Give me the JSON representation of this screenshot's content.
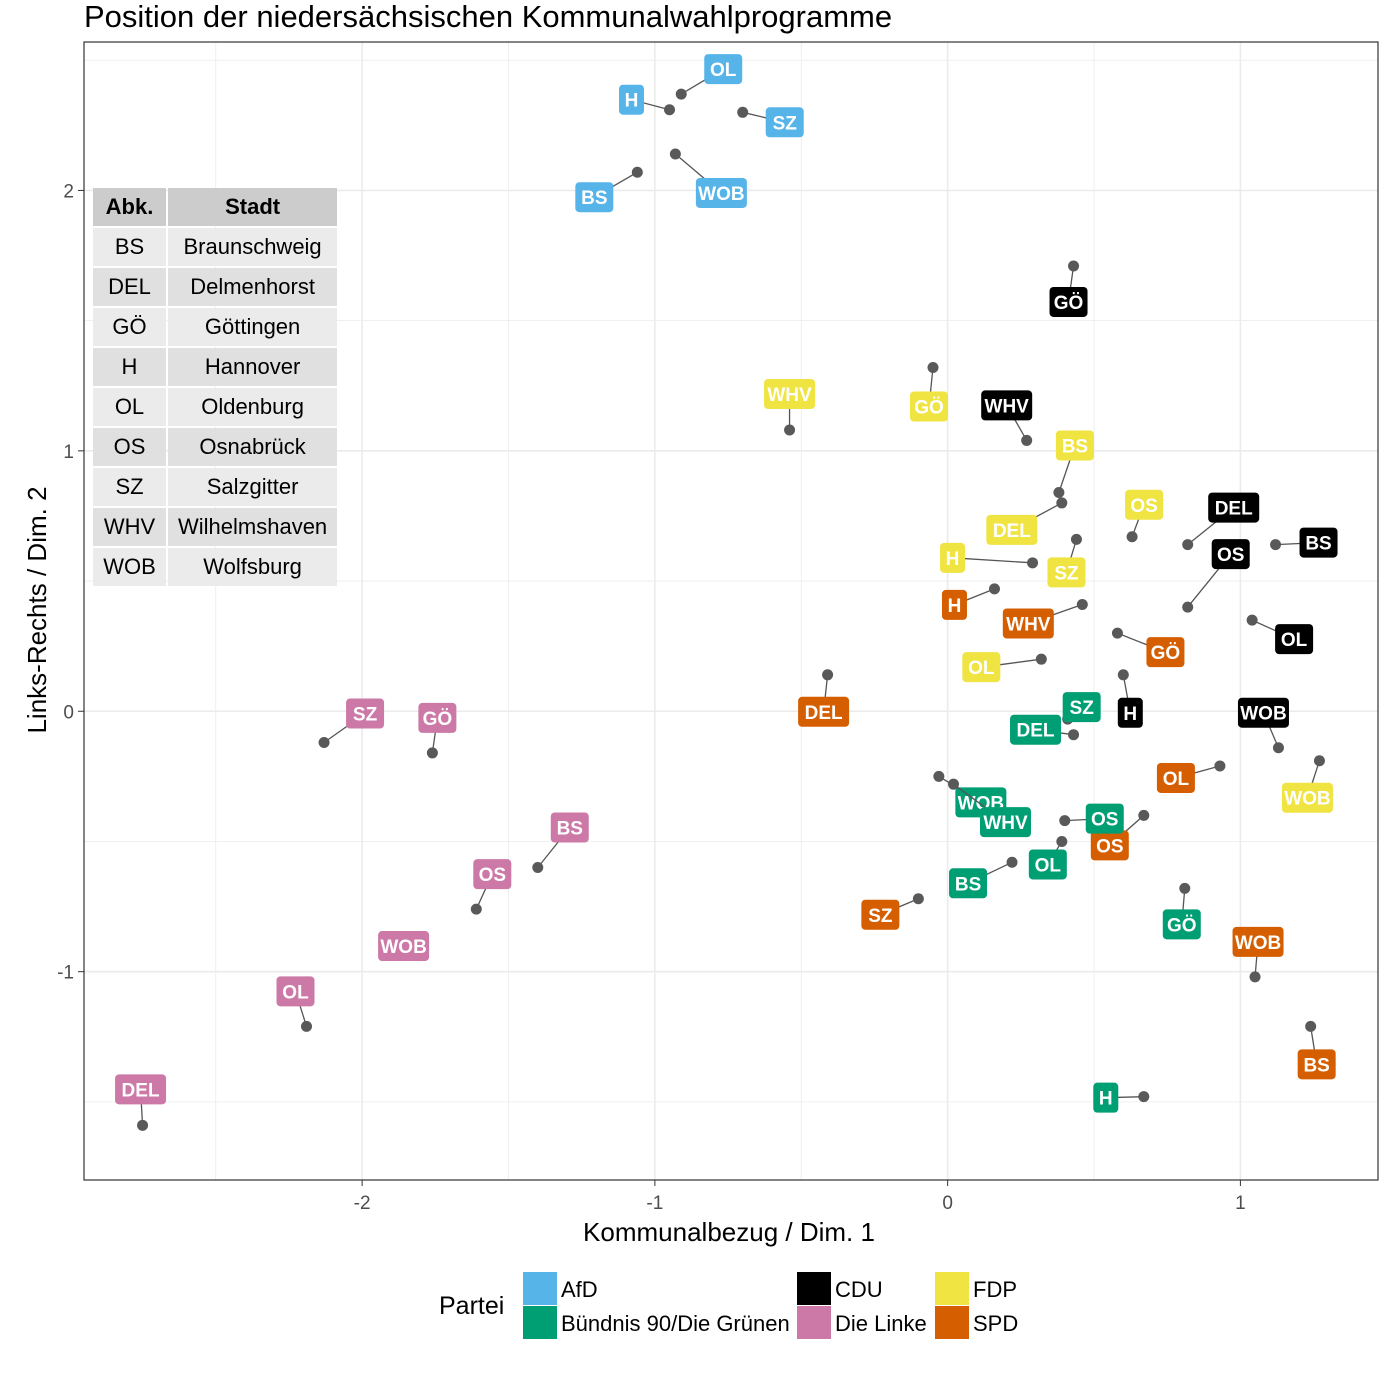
{
  "chart_data": {
    "type": "scatter",
    "title": "Position der niedersächsischen Kommunalwahlprogramme",
    "xlabel": "Kommunalbezug / Dim. 1",
    "ylabel": "Links-Rechts / Dim. 2",
    "xlim": [
      -2.95,
      1.47
    ],
    "ylim": [
      -1.8,
      2.57
    ],
    "xticks": [
      -2,
      -1,
      0,
      1
    ],
    "yticks": [
      -1,
      0,
      1,
      2
    ],
    "xtick_labels": [
      "-2",
      "-1",
      "0",
      "1"
    ],
    "ytick_labels": [
      "-1",
      "0",
      "1",
      "2"
    ],
    "grid": true,
    "legend": {
      "title": "Partei",
      "placement": "bottom",
      "entries": [
        {
          "name": "AfD",
          "color": "#56b4e9"
        },
        {
          "name": "Bündnis 90/Die Grünen",
          "color": "#009e73"
        },
        {
          "name": "CDU",
          "color": "#000000"
        },
        {
          "name": "Die Linke",
          "color": "#cc79a7"
        },
        {
          "name": "FDP",
          "color": "#f0e442"
        },
        {
          "name": "SPD",
          "color": "#d55e00"
        }
      ]
    },
    "series": [
      {
        "name": "AfD",
        "color": "#56b4e9",
        "points": [
          {
            "label": "OL",
            "x": -0.91,
            "y": 2.37
          },
          {
            "label": "H",
            "x": -0.95,
            "y": 2.31
          },
          {
            "label": "SZ",
            "x": -0.7,
            "y": 2.3
          },
          {
            "label": "WOB",
            "x": -0.93,
            "y": 2.14
          },
          {
            "label": "BS",
            "x": -1.06,
            "y": 2.07
          }
        ]
      },
      {
        "name": "CDU",
        "color": "#000000",
        "points": [
          {
            "label": "GÖ",
            "x": 0.43,
            "y": 1.71
          },
          {
            "label": "WHV",
            "x": 0.27,
            "y": 1.04
          },
          {
            "label": "DEL",
            "x": 0.82,
            "y": 0.64
          },
          {
            "label": "BS",
            "x": 1.12,
            "y": 0.64
          },
          {
            "label": "OS",
            "x": 0.82,
            "y": 0.4
          },
          {
            "label": "OL",
            "x": 1.04,
            "y": 0.35
          },
          {
            "label": "H",
            "x": 0.6,
            "y": 0.14
          },
          {
            "label": "WOB",
            "x": 1.13,
            "y": -0.14
          }
        ]
      },
      {
        "name": "FDP",
        "color": "#f0e442",
        "points": [
          {
            "label": "WHV",
            "x": -0.54,
            "y": 1.08
          },
          {
            "label": "GÖ",
            "x": -0.05,
            "y": 1.32
          },
          {
            "label": "BS",
            "x": 0.38,
            "y": 0.84
          },
          {
            "label": "DEL",
            "x": 0.39,
            "y": 0.8
          },
          {
            "label": "OS",
            "x": 0.63,
            "y": 0.67
          },
          {
            "label": "SZ",
            "x": 0.44,
            "y": 0.66
          },
          {
            "label": "H",
            "x": 0.29,
            "y": 0.57
          },
          {
            "label": "OL",
            "x": 0.32,
            "y": 0.2
          },
          {
            "label": "WOB",
            "x": 1.27,
            "y": -0.19
          }
        ]
      },
      {
        "name": "SPD",
        "color": "#d55e00",
        "points": [
          {
            "label": "H",
            "x": 0.16,
            "y": 0.47
          },
          {
            "label": "WHV",
            "x": 0.46,
            "y": 0.41
          },
          {
            "label": "GÖ",
            "x": 0.58,
            "y": 0.3
          },
          {
            "label": "DEL",
            "x": -0.41,
            "y": 0.14
          },
          {
            "label": "OL",
            "x": 0.93,
            "y": -0.21
          },
          {
            "label": "OS",
            "x": 0.67,
            "y": -0.4
          },
          {
            "label": "SZ",
            "x": -0.1,
            "y": -0.72
          },
          {
            "label": "WOB",
            "x": 1.05,
            "y": -1.02
          },
          {
            "label": "BS",
            "x": 1.24,
            "y": -1.21
          }
        ]
      },
      {
        "name": "Bündnis 90/Die Grünen",
        "color": "#009e73",
        "points": [
          {
            "label": "SZ",
            "x": 0.41,
            "y": -0.03
          },
          {
            "label": "DEL",
            "x": 0.43,
            "y": -0.09
          },
          {
            "label": "WOB",
            "x": -0.03,
            "y": -0.25
          },
          {
            "label": "WHV",
            "x": 0.02,
            "y": -0.28
          },
          {
            "label": "OS",
            "x": 0.4,
            "y": -0.42
          },
          {
            "label": "OL",
            "x": 0.39,
            "y": -0.5
          },
          {
            "label": "BS",
            "x": 0.22,
            "y": -0.58
          },
          {
            "label": "GÖ",
            "x": 0.81,
            "y": -0.68
          },
          {
            "label": "H",
            "x": 0.67,
            "y": -1.48
          }
        ]
      },
      {
        "name": "Die Linke",
        "color": "#cc79a7",
        "points": [
          {
            "label": "SZ",
            "x": -2.13,
            "y": -0.12
          },
          {
            "label": "GÖ",
            "x": -1.76,
            "y": -0.16
          },
          {
            "label": "BS",
            "x": -1.4,
            "y": -0.6
          },
          {
            "label": "OS",
            "x": -1.61,
            "y": -0.76
          },
          {
            "label": "WOB",
            "x": -1.79,
            "y": -0.89
          },
          {
            "label": "OL",
            "x": -2.19,
            "y": -1.21
          },
          {
            "label": "DEL",
            "x": -2.75,
            "y": -1.59
          }
        ]
      }
    ],
    "table": {
      "headers": [
        "Abk.",
        "Stadt"
      ],
      "rows": [
        [
          "BS",
          "Braunschweig"
        ],
        [
          "DEL",
          "Delmenhorst"
        ],
        [
          "GÖ",
          "Göttingen"
        ],
        [
          "H",
          "Hannover"
        ],
        [
          "OL",
          "Oldenburg"
        ],
        [
          "OS",
          "Osnabrück"
        ],
        [
          "SZ",
          "Salzgitter"
        ],
        [
          "WHV",
          "Wilhelmshaven"
        ],
        [
          "WOB",
          "Wolfsburg"
        ]
      ]
    }
  }
}
